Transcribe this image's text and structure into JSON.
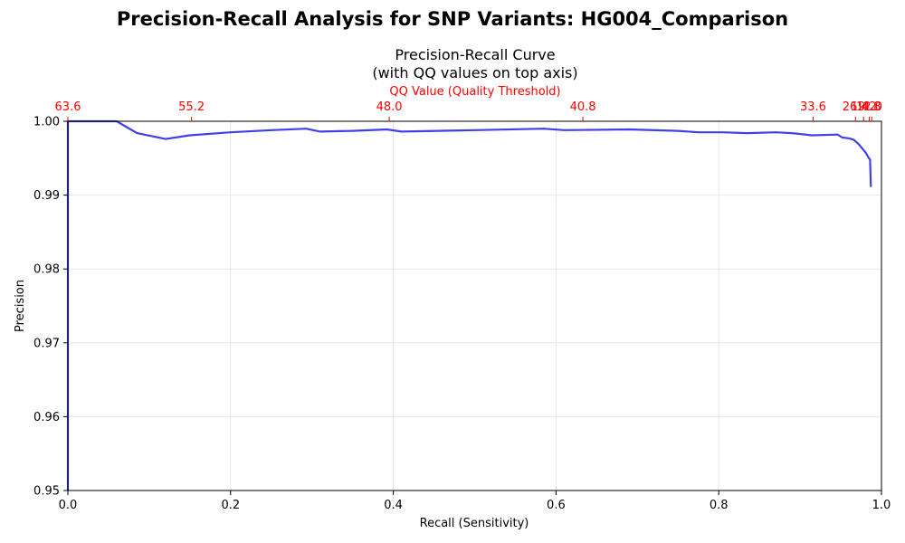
{
  "figure": {
    "suptitle": "Precision-Recall Analysis for SNP Variants: HG004_Comparison"
  },
  "chart_data": {
    "type": "line",
    "title_line1": "Precision-Recall Curve",
    "title_line2": "(with QQ values on top axis)",
    "xlabel": "Recall (Sensitivity)",
    "ylabel": "Precision",
    "top_xlabel": "QQ Value (Quality Threshold)",
    "xlim": [
      0.0,
      1.0
    ],
    "ylim": [
      0.95,
      1.0
    ],
    "x_ticks": [
      0.0,
      0.2,
      0.4,
      0.6,
      0.8,
      1.0
    ],
    "x_tick_labels": [
      "0.0",
      "0.2",
      "0.4",
      "0.6",
      "0.8",
      "1.0"
    ],
    "y_ticks": [
      0.95,
      0.96,
      0.97,
      0.98,
      0.99,
      1.0
    ],
    "y_tick_labels": [
      "0.95",
      "0.96",
      "0.97",
      "0.98",
      "0.99",
      "1.00"
    ],
    "grid": true,
    "colors": {
      "line": "#4040e6",
      "top_axis": "#ff0000",
      "grid": "#e6e6e6"
    },
    "top_ticks": [
      {
        "recall": 0.0,
        "label": "63.6"
      },
      {
        "recall": 0.152,
        "label": "55.2"
      },
      {
        "recall": 0.395,
        "label": "48.0"
      },
      {
        "recall": 0.633,
        "label": "40.8"
      },
      {
        "recall": 0.916,
        "label": "33.6"
      },
      {
        "recall": 0.968,
        "label": "26.4"
      },
      {
        "recall": 0.978,
        "label": "19.2"
      },
      {
        "recall": 0.985,
        "label": "12.0"
      },
      {
        "recall": 0.988,
        "label": "4.8"
      }
    ],
    "series": [
      {
        "points": [
          [
            0.0,
            0.95
          ],
          [
            0.0,
            1.0
          ],
          [
            0.06,
            1.0
          ],
          [
            0.085,
            0.9984
          ],
          [
            0.12,
            0.9976
          ],
          [
            0.15,
            0.9981
          ],
          [
            0.2,
            0.9985
          ],
          [
            0.25,
            0.9988
          ],
          [
            0.293,
            0.999
          ],
          [
            0.31,
            0.9986
          ],
          [
            0.35,
            0.9987
          ],
          [
            0.392,
            0.9989
          ],
          [
            0.41,
            0.9986
          ],
          [
            0.5,
            0.9988
          ],
          [
            0.585,
            0.999
          ],
          [
            0.61,
            0.9988
          ],
          [
            0.69,
            0.9989
          ],
          [
            0.75,
            0.9987
          ],
          [
            0.775,
            0.9985
          ],
          [
            0.805,
            0.9985
          ],
          [
            0.835,
            0.9984
          ],
          [
            0.87,
            0.9985
          ],
          [
            0.89,
            0.9984
          ],
          [
            0.915,
            0.9981
          ],
          [
            0.946,
            0.9982
          ],
          [
            0.952,
            0.9978
          ],
          [
            0.96,
            0.9977
          ],
          [
            0.966,
            0.9975
          ],
          [
            0.972,
            0.9969
          ],
          [
            0.978,
            0.9961
          ],
          [
            0.981,
            0.9957
          ],
          [
            0.984,
            0.9951
          ],
          [
            0.986,
            0.9948
          ],
          [
            0.987,
            0.9911
          ]
        ]
      }
    ]
  }
}
